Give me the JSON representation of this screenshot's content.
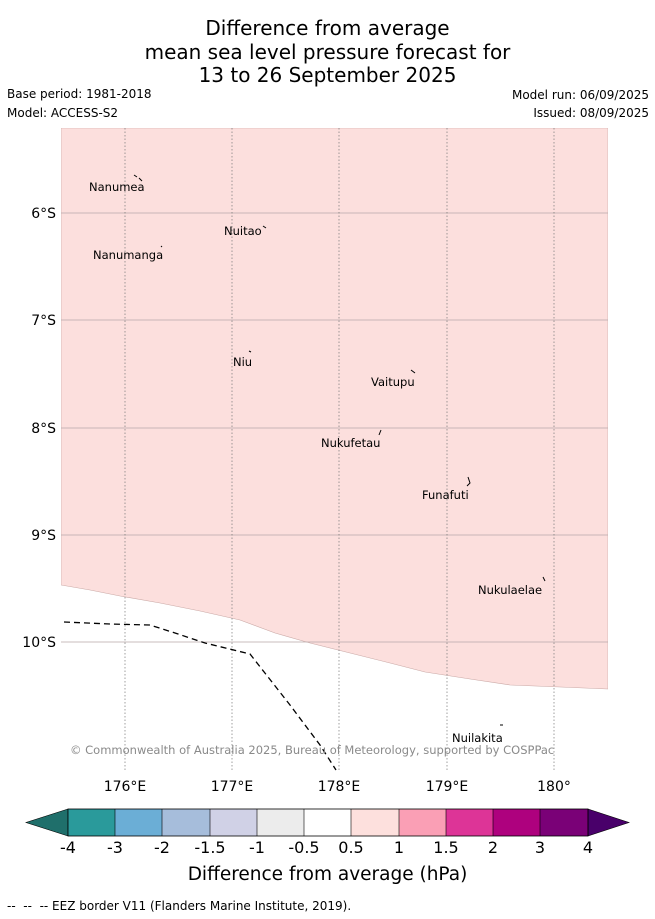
{
  "title": {
    "line1": "Difference from average",
    "line2": "mean sea level pressure forecast for",
    "line3": "13 to 26 September 2025"
  },
  "meta": {
    "base_period": "Base period: 1981-2018",
    "model": "Model: ACCESS-S2",
    "model_run": "Model run: 06/09/2025",
    "issued": "Issued: 08/09/2025"
  },
  "map": {
    "fill_color": "#fcdfdd",
    "background": "#ffffff",
    "copyright": "© Commonwealth of Australia 2025, Bureau of Meteorology, supported by COSPPac",
    "lat_labels": [
      "6°S",
      "7°S",
      "8°S",
      "9°S",
      "10°S"
    ],
    "lon_labels": [
      "176°E",
      "177°E",
      "178°E",
      "179°E",
      "180°"
    ],
    "places": [
      {
        "name": "Nanumea"
      },
      {
        "name": "Nuitao"
      },
      {
        "name": "Nanumanga"
      },
      {
        "name": "Niu"
      },
      {
        "name": "Vaitupu"
      },
      {
        "name": "Nukufetau"
      },
      {
        "name": "Funafuti"
      },
      {
        "name": "Nukulaelae"
      },
      {
        "name": "Nuilakita"
      }
    ]
  },
  "colorbar": {
    "title": "Difference from average (hPa)",
    "tick_labels": [
      "-4",
      "-3",
      "-2",
      "-1.5",
      "-1",
      "-0.5",
      "0.5",
      "1",
      "1.5",
      "2",
      "3",
      "4"
    ],
    "colors": [
      "#1f6f6b",
      "#2a9a9b",
      "#6baed6",
      "#a6bddb",
      "#d0d1e6",
      "#ececec",
      "#ffffff",
      "#fde0dd",
      "#fa9fb5",
      "#dd3497",
      "#ae017e",
      "#7a0177",
      "#49006a"
    ]
  },
  "footnote": "--  --  -- EEZ border V11 (Flanders Marine Institute, 2019)."
}
